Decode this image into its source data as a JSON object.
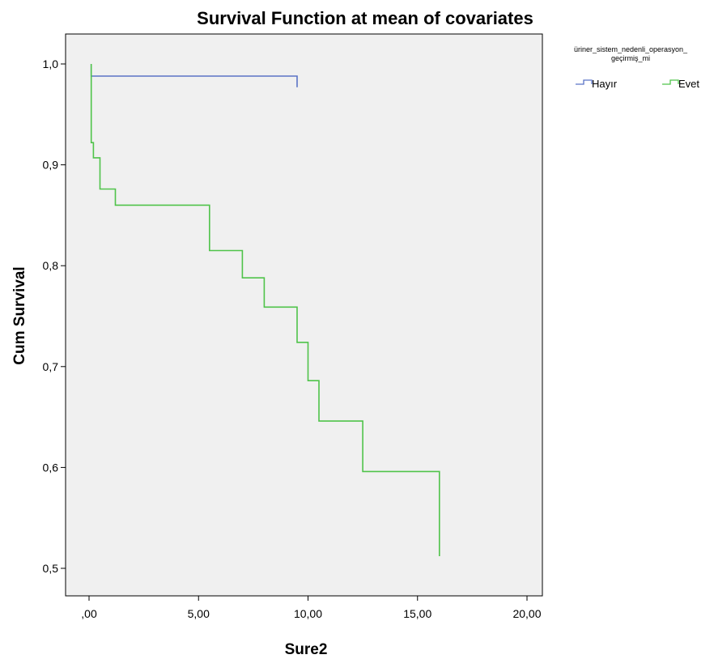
{
  "chart_data": {
    "type": "line",
    "title": "Survival Function at mean of covariates",
    "xlabel": "Sure2",
    "ylabel": "Cum Survival",
    "xlim": [
      0,
      20
    ],
    "ylim": [
      0.5,
      1.0
    ],
    "x_ticks": [
      0,
      5,
      10,
      15,
      20
    ],
    "x_tick_labels": [
      ",00",
      "5,00",
      "10,00",
      "15,00",
      "20,00"
    ],
    "y_ticks": [
      0.5,
      0.6,
      0.7,
      0.8,
      0.9,
      1.0
    ],
    "y_tick_labels": [
      "0,5",
      "0,6",
      "0,7",
      "0,8",
      "0,9",
      "1,0"
    ],
    "grid": false,
    "step": true,
    "legend": {
      "title_lines": [
        "üriner_sistem_nedenli_operasyon_",
        "geçirmiş_mi"
      ],
      "placement": "top-right, outside plot"
    },
    "series": [
      {
        "name": "Hayır",
        "color": "#5b73c6",
        "points": [
          [
            0.1,
            1.0
          ],
          [
            0.1,
            0.988
          ],
          [
            9.5,
            0.988
          ],
          [
            9.5,
            0.977
          ]
        ]
      },
      {
        "name": "Evet",
        "color": "#4fc34a",
        "points": [
          [
            0.1,
            1.0
          ],
          [
            0.1,
            0.922
          ],
          [
            0.2,
            0.922
          ],
          [
            0.2,
            0.907
          ],
          [
            0.5,
            0.907
          ],
          [
            0.5,
            0.876
          ],
          [
            1.2,
            0.876
          ],
          [
            1.2,
            0.86
          ],
          [
            5.5,
            0.86
          ],
          [
            5.5,
            0.815
          ],
          [
            7.0,
            0.815
          ],
          [
            7.0,
            0.788
          ],
          [
            8.0,
            0.788
          ],
          [
            8.0,
            0.759
          ],
          [
            9.5,
            0.759
          ],
          [
            9.5,
            0.724
          ],
          [
            10.0,
            0.724
          ],
          [
            10.0,
            0.686
          ],
          [
            10.5,
            0.686
          ],
          [
            10.5,
            0.646
          ],
          [
            12.5,
            0.646
          ],
          [
            12.5,
            0.596
          ],
          [
            16.0,
            0.596
          ],
          [
            16.0,
            0.512
          ]
        ]
      }
    ],
    "plot_background": "#f0f0f0"
  }
}
